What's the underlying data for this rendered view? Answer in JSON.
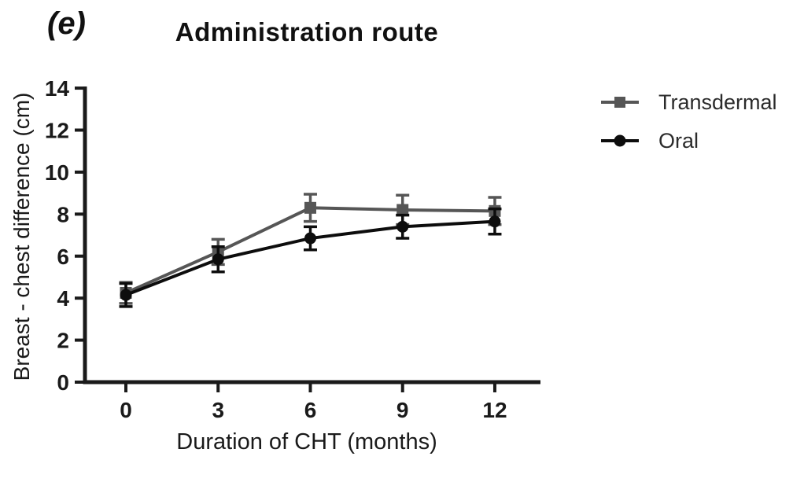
{
  "figure": {
    "panel_label": "(e)",
    "background_color": "#ffffff",
    "axis_color": "#1a1a1a",
    "text_color": "#1a1a1a"
  },
  "chart_data": {
    "type": "line",
    "panel_label": "(e)",
    "title": "Administration route",
    "xlabel": "Duration of CHT (months)",
    "ylabel": "Breast - chest difference (cm)",
    "x": [
      0,
      3,
      6,
      9,
      12
    ],
    "xticks": [
      0,
      3,
      6,
      9,
      12
    ],
    "yticks": [
      0,
      2,
      4,
      6,
      8,
      10,
      12,
      14
    ],
    "xlim": [
      -1.35,
      13.5
    ],
    "ylim": [
      0,
      14
    ],
    "grid": false,
    "error_bars": true,
    "legend_position": "right",
    "series": [
      {
        "name": "Transdermal",
        "marker": "square",
        "color": "#565656",
        "values": [
          4.25,
          6.2,
          8.3,
          8.2,
          8.15
        ],
        "errors": [
          0.5,
          0.6,
          0.65,
          0.7,
          0.65
        ]
      },
      {
        "name": "Oral",
        "marker": "circle",
        "color": "#0d0d0d",
        "values": [
          4.15,
          5.85,
          6.85,
          7.4,
          7.65
        ],
        "errors": [
          0.55,
          0.6,
          0.55,
          0.55,
          0.6
        ]
      }
    ]
  }
}
